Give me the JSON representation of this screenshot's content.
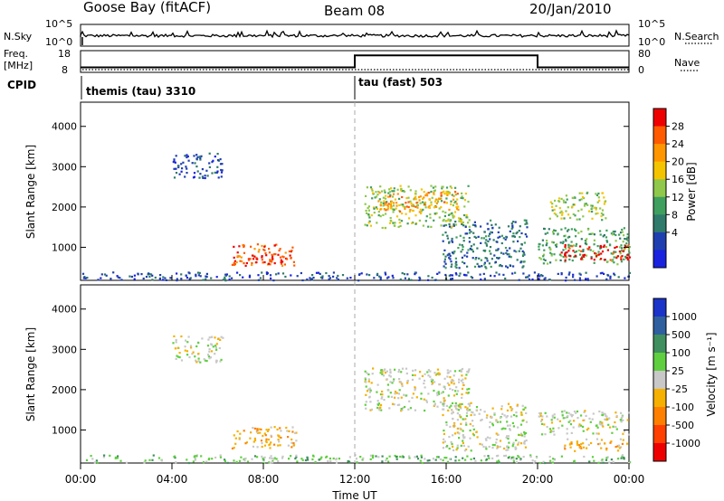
{
  "header": {
    "station": "Goose Bay (fitACF)",
    "beam": "Beam 08",
    "date": "20/Jan/2010"
  },
  "panels": {
    "nsky": {
      "left_label": "N.Sky",
      "right_label": "N.Search",
      "left_ticks": [
        "10^5",
        "10^0"
      ],
      "right_ticks": [
        "10^5",
        "10^0"
      ]
    },
    "freq": {
      "left_label_1": "Freq.",
      "left_label_2": "[MHz]",
      "right_label": "Nave",
      "left_ticks": [
        "18",
        "8"
      ],
      "right_ticks": [
        "80",
        "0"
      ]
    },
    "cpid": {
      "label": "CPID",
      "segments": [
        {
          "name": "themis (tau) 3310"
        },
        {
          "name": "tau (fast) 503"
        }
      ]
    }
  },
  "colorbars": {
    "power": {
      "label": "Power [dB]",
      "ticks": [
        "28",
        "24",
        "20",
        "16",
        "12",
        "8",
        "4"
      ],
      "colors": [
        "#ee0000",
        "#ff5a00",
        "#ff9600",
        "#f5c400",
        "#8fc84a",
        "#3f9f5f",
        "#2f7a6a",
        "#1f3fb0",
        "#1a22e0"
      ]
    },
    "velocity": {
      "label": "Velocity [m s⁻¹]",
      "ticks": [
        "1000",
        "500",
        "100",
        "25",
        "-25",
        "-100",
        "-500",
        "-1000"
      ],
      "colors": [
        "#1a33c8",
        "#2f5f9f",
        "#3f8f5f",
        "#5fcf3f",
        "#c8c8c8",
        "#f5b000",
        "#ff8000",
        "#ff4000",
        "#ee0000"
      ]
    }
  },
  "chart_data": {
    "type": "heatmap",
    "x_axis": {
      "label": "Time UT",
      "ticks": [
        "00:00",
        "04:00",
        "08:00",
        "12:00",
        "16:00",
        "20:00",
        "00:00"
      ],
      "range_hours": [
        0,
        24
      ]
    },
    "y_axis": {
      "label": "Slant Range [km]",
      "ticks": [
        1000,
        2000,
        3000,
        4000
      ],
      "range_km": [
        180,
        4600
      ]
    },
    "cpid_change_hour": 12.0,
    "freq_mhz": {
      "segments": [
        {
          "start": 0,
          "end": 12,
          "value": 10.5
        },
        {
          "start": 12,
          "end": 20,
          "value": 16.5
        },
        {
          "start": 20,
          "end": 24,
          "value": 10.5
        }
      ]
    },
    "power_regions": [
      {
        "t0": 4.0,
        "t1": 6.2,
        "r0": 2700,
        "r1": 3350,
        "level": 7
      },
      {
        "t0": 6.6,
        "t1": 9.4,
        "r0": 550,
        "r1": 1100,
        "level": 1
      },
      {
        "t0": 7.2,
        "t1": 8.8,
        "r0": 600,
        "r1": 850,
        "level": 0
      },
      {
        "t0": 12.4,
        "t1": 17.0,
        "r0": 1500,
        "r1": 2550,
        "level": 4
      },
      {
        "t0": 13.0,
        "t1": 16.5,
        "r0": 1900,
        "r1": 2400,
        "level": 2
      },
      {
        "t0": 15.8,
        "t1": 19.5,
        "r0": 500,
        "r1": 1700,
        "level": 6
      },
      {
        "t0": 20.0,
        "t1": 24.0,
        "r0": 600,
        "r1": 1500,
        "level": 5
      },
      {
        "t0": 21.0,
        "t1": 24.0,
        "r0": 700,
        "r1": 1100,
        "level": 0
      },
      {
        "t0": 20.5,
        "t1": 23.0,
        "r0": 1700,
        "r1": 2400,
        "level": 4
      },
      {
        "t0": 0.0,
        "t1": 24.0,
        "r0": 200,
        "r1": 400,
        "level": 7
      }
    ],
    "velocity_regions": [
      {
        "t0": 4.0,
        "t1": 6.2,
        "r0": 2700,
        "r1": 3350,
        "level": 4
      },
      {
        "t0": 6.6,
        "t1": 9.4,
        "r0": 550,
        "r1": 1100,
        "level": 5
      },
      {
        "t0": 12.4,
        "t1": 17.0,
        "r0": 1500,
        "r1": 2550,
        "level": 4
      },
      {
        "t0": 15.8,
        "t1": 19.5,
        "r0": 500,
        "r1": 1700,
        "level": 4
      },
      {
        "t0": 20.0,
        "t1": 24.0,
        "r0": 900,
        "r1": 1500,
        "level": 4
      },
      {
        "t0": 21.0,
        "t1": 24.0,
        "r0": 500,
        "r1": 800,
        "level": 5
      },
      {
        "t0": 0.0,
        "t1": 24.0,
        "r0": 200,
        "r1": 400,
        "level": 3
      }
    ]
  }
}
